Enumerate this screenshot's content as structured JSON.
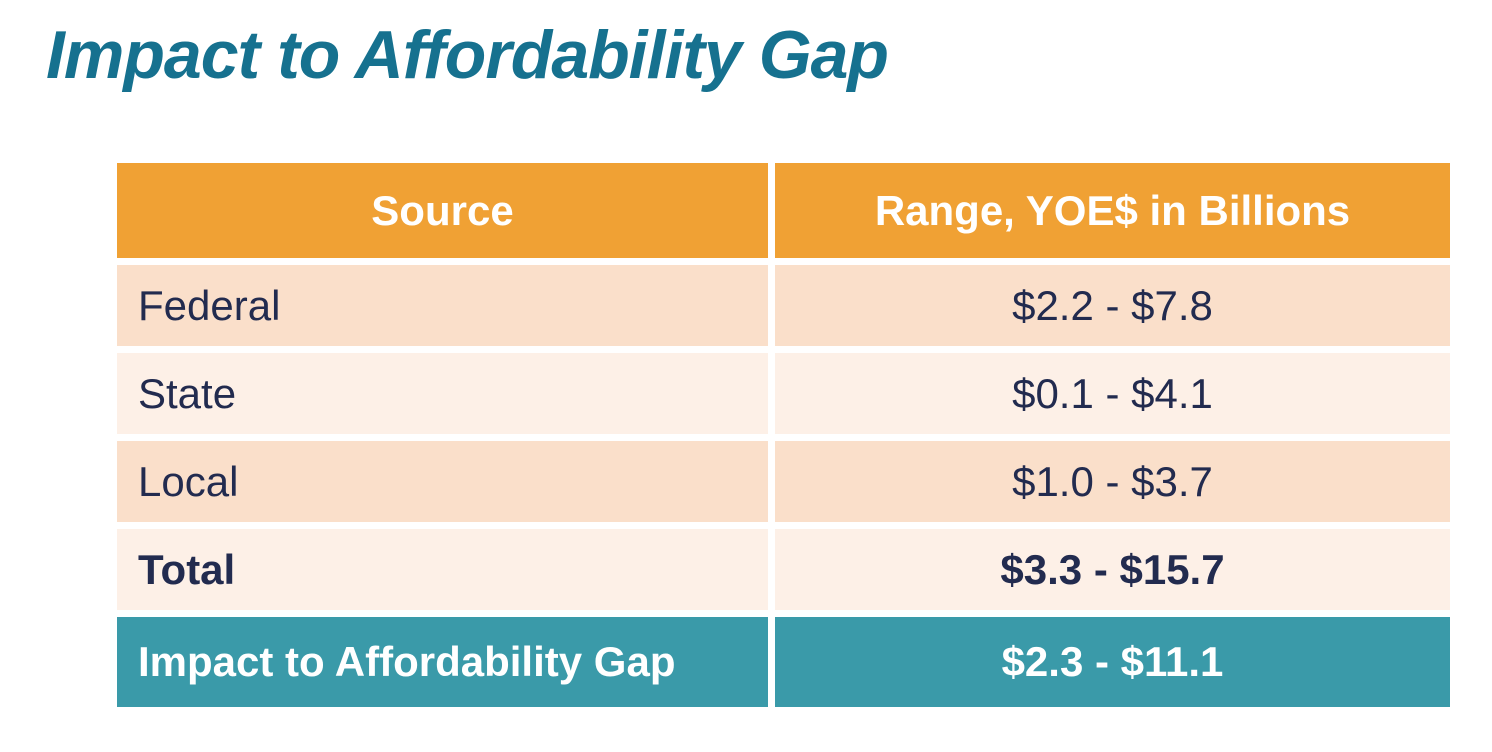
{
  "slide": {
    "title": "Impact to Affordability Gap"
  },
  "table": {
    "headers": [
      "Source",
      "Range, YOE$ in Billions"
    ],
    "rows": [
      {
        "source": "Federal",
        "range": "$2.2 - $7.8"
      },
      {
        "source": "State",
        "range": "$0.1 - $4.1"
      },
      {
        "source": "Local",
        "range": "$1.0 - $3.7"
      },
      {
        "source": "Total",
        "range": "$3.3 - $15.7"
      },
      {
        "source": "Impact to Affordability Gap",
        "range": "$2.3 - $11.1"
      }
    ]
  },
  "colors": {
    "title_text": "#16718F",
    "header_bg": "#F0A134",
    "header_text": "#FFFFFF",
    "row_shade_dark": "#FADFCA",
    "row_shade_light": "#FDF0E7",
    "highlight_bg": "#3A9AA9",
    "highlight_text": "#FFFFFF",
    "body_text": "#222B4F",
    "gridline": "#FFFFFF"
  }
}
